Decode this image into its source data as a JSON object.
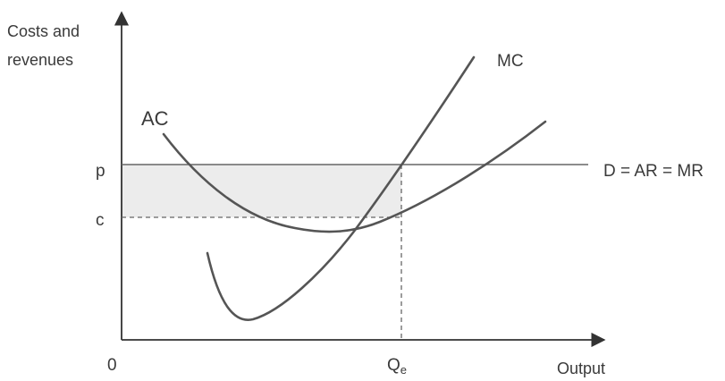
{
  "y_axis_label_line1": "Costs and",
  "y_axis_label_line2": "revenues",
  "x_axis_label": "Output",
  "origin_label": "0",
  "price_label": "p",
  "cost_label": "c",
  "quantity_label_main": "Q",
  "quantity_label_sub": "e",
  "ac_label": "AC",
  "mc_label": "MC",
  "demand_label": "D = AR = MR",
  "colors": {
    "curve": "#555555",
    "axis": "#333333",
    "profit_shading": "#ececec",
    "dashed": "#666666"
  }
}
